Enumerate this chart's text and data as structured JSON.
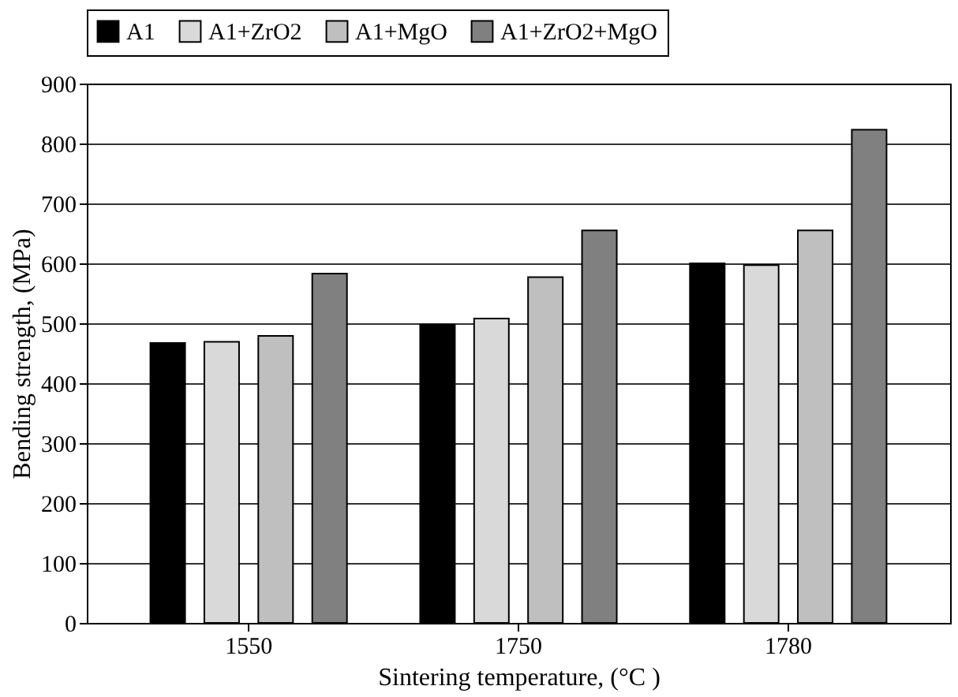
{
  "chart_data": {
    "type": "bar",
    "xlabel": "Sintering temperature, (°C )",
    "ylabel": "Bending strength, (MPa)",
    "categories": [
      "1550",
      "1750",
      "1780"
    ],
    "series": [
      {
        "name": "A1",
        "color": "#000000",
        "values": [
          467,
          498,
          600
        ]
      },
      {
        "name": "A1+ZrO2",
        "color": "#d9d9d9",
        "values": [
          469,
          508,
          597
        ]
      },
      {
        "name": "A1+MgO",
        "color": "#bfbfbf",
        "values": [
          479,
          577,
          655
        ]
      },
      {
        "name": "A1+ZrO2+MgO",
        "color": "#808080",
        "values": [
          583,
          655,
          823
        ]
      }
    ],
    "ylim": [
      0,
      900
    ],
    "yticks": [
      0,
      100,
      200,
      300,
      400,
      500,
      600,
      700,
      800,
      900
    ],
    "grid": "y",
    "legend": "top"
  }
}
